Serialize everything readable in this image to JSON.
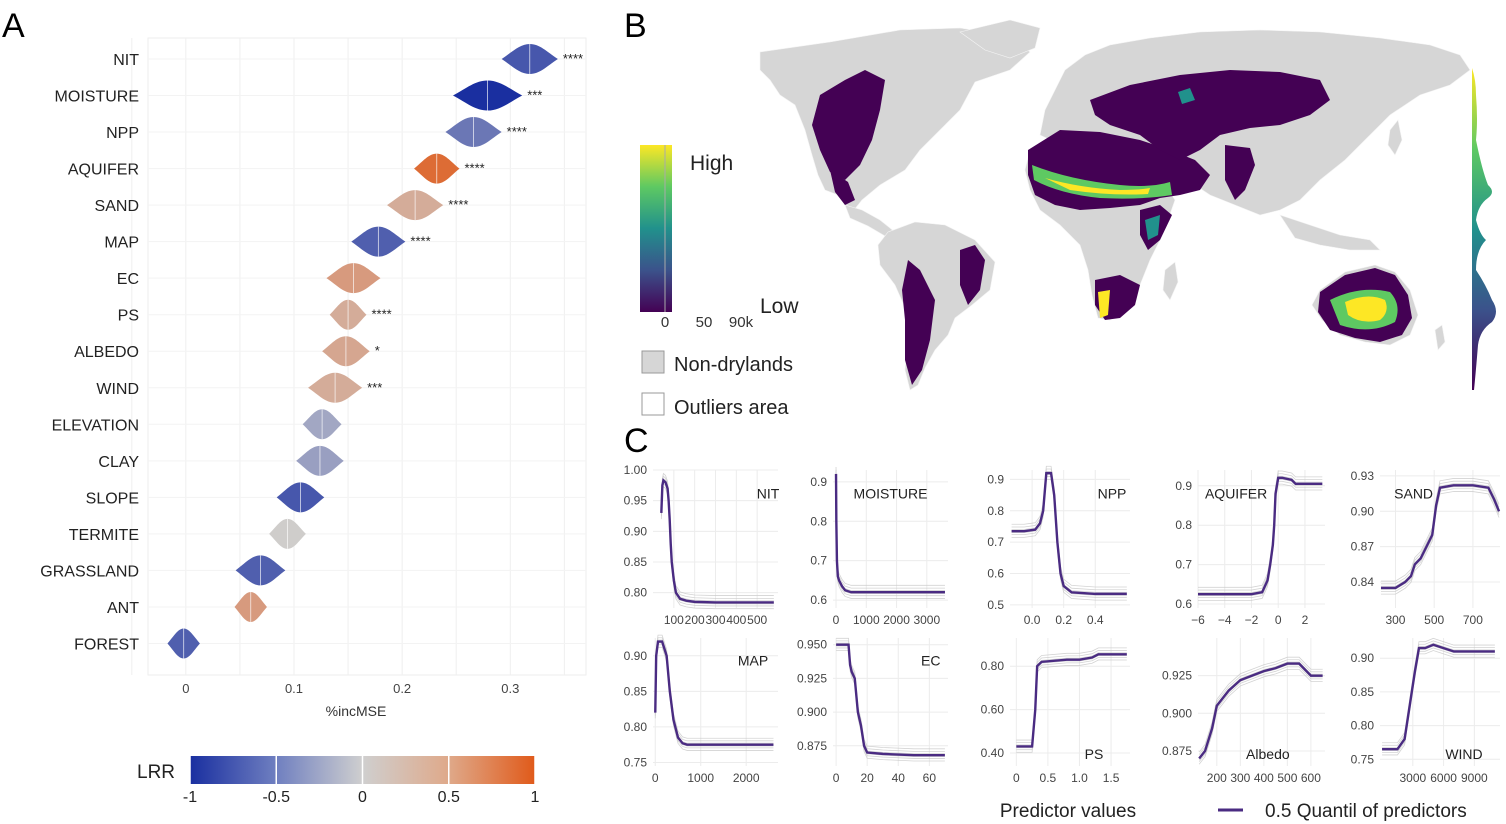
{
  "panel_labels": {
    "a": "A",
    "b": "B",
    "c": "C"
  },
  "colors": {
    "neg": "#1a2fa0",
    "mid": "#cfcfcf",
    "pos": "#e05a1a",
    "viridis_low": "#440154",
    "viridis_high": "#fde725",
    "line": "#4a2b82",
    "land": "#d6d6d6"
  },
  "panel_a": {
    "xlabel": "%incMSE",
    "xticks": [
      0,
      0.1,
      0.2,
      0.3
    ],
    "xtick_labels": [
      "0",
      "0.1",
      "0.2",
      "0.3"
    ],
    "xlim": [
      -0.035,
      0.37
    ],
    "legend": {
      "title": "LRR",
      "ticks": [
        "-1",
        "-0.5",
        "0",
        "0.5",
        "1"
      ],
      "values": [
        -1,
        -0.5,
        0,
        0.5,
        1
      ]
    }
  },
  "chart_data": [
    {
      "type": "violin",
      "xlabel": "%incMSE",
      "xlim": [
        -0.035,
        0.37
      ],
      "items": [
        {
          "name": "NIT",
          "center": 0.318,
          "spread": 0.026,
          "lrr": -0.75,
          "sig": "****"
        },
        {
          "name": "MOISTURE",
          "center": 0.279,
          "spread": 0.032,
          "lrr": -1.0,
          "sig": "***"
        },
        {
          "name": "NPP",
          "center": 0.266,
          "spread": 0.026,
          "lrr": -0.55,
          "sig": "****"
        },
        {
          "name": "AQUIFER",
          "center": 0.232,
          "spread": 0.021,
          "lrr": 0.85,
          "sig": "****"
        },
        {
          "name": "SAND",
          "center": 0.212,
          "spread": 0.026,
          "lrr": 0.3,
          "sig": "****"
        },
        {
          "name": "MAP",
          "center": 0.178,
          "spread": 0.025,
          "lrr": -0.7,
          "sig": "****"
        },
        {
          "name": "EC",
          "center": 0.155,
          "spread": 0.025,
          "lrr": 0.45,
          "sig": ""
        },
        {
          "name": "PS",
          "center": 0.15,
          "spread": 0.017,
          "lrr": 0.3,
          "sig": "****"
        },
        {
          "name": "ALBEDO",
          "center": 0.148,
          "spread": 0.022,
          "lrr": 0.35,
          "sig": "*"
        },
        {
          "name": "WIND",
          "center": 0.138,
          "spread": 0.025,
          "lrr": 0.3,
          "sig": "***"
        },
        {
          "name": "ELEVATION",
          "center": 0.126,
          "spread": 0.018,
          "lrr": -0.25,
          "sig": ""
        },
        {
          "name": "CLAY",
          "center": 0.124,
          "spread": 0.022,
          "lrr": -0.3,
          "sig": ""
        },
        {
          "name": "SLOPE",
          "center": 0.106,
          "spread": 0.022,
          "lrr": -0.75,
          "sig": ""
        },
        {
          "name": "TERMITE",
          "center": 0.094,
          "spread": 0.017,
          "lrr": 0.02,
          "sig": ""
        },
        {
          "name": "GRASSLAND",
          "center": 0.069,
          "spread": 0.023,
          "lrr": -0.7,
          "sig": ""
        },
        {
          "name": "ANT",
          "center": 0.06,
          "spread": 0.015,
          "lrr": 0.45,
          "sig": ""
        },
        {
          "name": "FOREST",
          "center": -0.002,
          "spread": 0.015,
          "lrr": -0.7,
          "sig": ""
        }
      ]
    },
    {
      "type": "map",
      "legend": {
        "high": "High",
        "low": "Low",
        "ticks": [
          "0",
          "50",
          "90k"
        ],
        "nondryland": "Non-drylands",
        "outliers": "Outliers area"
      }
    },
    {
      "type": "line",
      "xlabel": "Predictor values",
      "legend": "0.5 Quantil of predictors",
      "panels": [
        {
          "name": "NIT",
          "xlim": [
            0,
            600
          ],
          "ylim": [
            0.775,
            1.0
          ],
          "xticks": [
            100,
            200,
            300,
            400,
            500
          ],
          "yticks": [
            0.8,
            0.85,
            0.9,
            0.95,
            1.0
          ],
          "xtl": [
            "100",
            "200",
            "300",
            "400",
            "500"
          ],
          "ytl": [
            "0.80",
            "0.85",
            "0.90",
            "0.95",
            "1.00"
          ],
          "x": [
            40,
            45,
            50,
            60,
            70,
            75,
            80,
            85,
            90,
            100,
            110,
            130,
            160,
            200,
            300,
            400,
            500,
            580
          ],
          "y": [
            0.93,
            0.975,
            0.983,
            0.98,
            0.97,
            0.95,
            0.92,
            0.88,
            0.85,
            0.82,
            0.8,
            0.79,
            0.787,
            0.785,
            0.784,
            0.784,
            0.784,
            0.784
          ]
        },
        {
          "name": "MOISTURE",
          "xlim": [
            -100,
            3700
          ],
          "ylim": [
            0.58,
            0.93
          ],
          "xticks": [
            0,
            1000,
            2000,
            3000
          ],
          "yticks": [
            0.6,
            0.7,
            0.8,
            0.9
          ],
          "xtl": [
            "0",
            "1000",
            "2000",
            "3000"
          ],
          "ytl": [
            "0.6",
            "0.7",
            "0.8",
            "0.9"
          ],
          "x": [
            0,
            10,
            30,
            60,
            100,
            200,
            300,
            500,
            800,
            1500,
            2500,
            3600
          ],
          "y": [
            0.92,
            0.8,
            0.7,
            0.66,
            0.65,
            0.635,
            0.625,
            0.62,
            0.62,
            0.62,
            0.62,
            0.62
          ]
        },
        {
          "name": "NPP",
          "xlim": [
            -0.14,
            0.62
          ],
          "ylim": [
            0.49,
            0.93
          ],
          "xticks": [
            0.0,
            0.2,
            0.4
          ],
          "yticks": [
            0.5,
            0.6,
            0.7,
            0.8,
            0.9
          ],
          "xtl": [
            "0.0",
            "0.2",
            "0.4"
          ],
          "ytl": [
            "0.5",
            "0.6",
            "0.7",
            "0.8",
            "0.9"
          ],
          "x": [
            -0.13,
            -0.05,
            0.02,
            0.05,
            0.07,
            0.09,
            0.12,
            0.14,
            0.16,
            0.18,
            0.2,
            0.25,
            0.4,
            0.6
          ],
          "y": [
            0.735,
            0.735,
            0.74,
            0.76,
            0.8,
            0.92,
            0.92,
            0.85,
            0.7,
            0.6,
            0.56,
            0.54,
            0.535,
            0.535
          ]
        },
        {
          "name": "AQUIFER",
          "xlim": [
            -6,
            3.5
          ],
          "ylim": [
            0.59,
            0.94
          ],
          "xticks": [
            -6,
            -4,
            -2,
            0,
            2
          ],
          "yticks": [
            0.6,
            0.7,
            0.8,
            0.9
          ],
          "xtl": [
            "−6",
            "−4",
            "−2",
            "0",
            "2"
          ],
          "ytl": [
            "0.6",
            "0.7",
            "0.8",
            "0.9"
          ],
          "x": [
            -6,
            -4,
            -2,
            -1.2,
            -0.8,
            -0.6,
            -0.4,
            -0.3,
            -0.2,
            0,
            0.3,
            1,
            1.3,
            2,
            3.3
          ],
          "y": [
            0.625,
            0.625,
            0.625,
            0.63,
            0.66,
            0.7,
            0.75,
            0.8,
            0.88,
            0.92,
            0.92,
            0.915,
            0.905,
            0.905,
            0.905
          ]
        },
        {
          "name": "SAND",
          "xlim": [
            220,
            840
          ],
          "ylim": [
            0.818,
            0.935
          ],
          "xticks": [
            300,
            500,
            700
          ],
          "yticks": [
            0.84,
            0.87,
            0.9,
            0.93
          ],
          "xtl": [
            "300",
            "500",
            "700"
          ],
          "ytl": [
            "0.84",
            "0.87",
            "0.90",
            "0.93"
          ],
          "x": [
            225,
            300,
            350,
            380,
            400,
            430,
            460,
            490,
            510,
            530,
            600,
            700,
            780,
            810,
            835
          ],
          "y": [
            0.835,
            0.835,
            0.84,
            0.845,
            0.855,
            0.86,
            0.87,
            0.88,
            0.905,
            0.92,
            0.922,
            0.922,
            0.92,
            0.91,
            0.9
          ]
        },
        {
          "name": "MAP",
          "xlim": [
            -50,
            2700
          ],
          "ylim": [
            0.745,
            0.925
          ],
          "xticks": [
            0,
            1000,
            2000
          ],
          "yticks": [
            0.75,
            0.8,
            0.85,
            0.9
          ],
          "xtl": [
            "0",
            "1000",
            "2000"
          ],
          "ytl": [
            "0.75",
            "0.80",
            "0.85",
            "0.90"
          ],
          "x": [
            0,
            20,
            60,
            150,
            250,
            320,
            400,
            500,
            600,
            700,
            1000,
            2000,
            2600
          ],
          "y": [
            0.82,
            0.9,
            0.92,
            0.92,
            0.9,
            0.85,
            0.81,
            0.785,
            0.777,
            0.775,
            0.775,
            0.775,
            0.775
          ]
        },
        {
          "name": "EC",
          "xlim": [
            -2,
            72
          ],
          "ylim": [
            0.86,
            0.955
          ],
          "xticks": [
            0,
            20,
            40,
            60
          ],
          "yticks": [
            0.875,
            0.9,
            0.925,
            0.95
          ],
          "xtl": [
            "0",
            "20",
            "40",
            "60"
          ],
          "ytl": [
            "0.875",
            "0.900",
            "0.925",
            "0.950"
          ],
          "x": [
            0,
            8,
            9,
            10,
            12,
            14,
            16,
            18,
            20,
            30,
            50,
            70
          ],
          "y": [
            0.95,
            0.95,
            0.935,
            0.93,
            0.925,
            0.9,
            0.89,
            0.875,
            0.87,
            0.869,
            0.868,
            0.868
          ]
        },
        {
          "name": "PS",
          "xlim": [
            -0.1,
            1.8
          ],
          "ylim": [
            0.34,
            0.93
          ],
          "xticks": [
            0,
            0.5,
            1.0,
            1.5
          ],
          "yticks": [
            0.4,
            0.6,
            0.8
          ],
          "xtl": [
            "0",
            "0.5",
            "1.0",
            "1.5"
          ],
          "ytl": [
            "0.40",
            "0.60",
            "0.80"
          ],
          "x": [
            0,
            0.25,
            0.3,
            0.33,
            0.4,
            0.8,
            1.0,
            1.2,
            1.3,
            1.75
          ],
          "y": [
            0.43,
            0.43,
            0.6,
            0.8,
            0.82,
            0.83,
            0.83,
            0.84,
            0.855,
            0.855
          ]
        },
        {
          "name": "Albedo",
          "xlim": [
            120,
            660
          ],
          "ylim": [
            0.865,
            0.95
          ],
          "xticks": [
            200,
            300,
            400,
            500,
            600
          ],
          "yticks": [
            0.875,
            0.9,
            0.925
          ],
          "xtl": [
            "200",
            "300",
            "400",
            "500",
            "600"
          ],
          "ytl": [
            "0.875",
            "0.900",
            "0.925"
          ],
          "x": [
            125,
            150,
            180,
            200,
            250,
            300,
            350,
            400,
            450,
            500,
            550,
            600,
            650
          ],
          "y": [
            0.87,
            0.875,
            0.89,
            0.905,
            0.915,
            0.922,
            0.925,
            0.928,
            0.93,
            0.933,
            0.933,
            0.925,
            0.925
          ]
        },
        {
          "name": "WIND",
          "xlim": [
            -200,
            11500
          ],
          "ylim": [
            0.74,
            0.93
          ],
          "xticks": [
            3000,
            6000,
            9000
          ],
          "yticks": [
            0.75,
            0.8,
            0.85,
            0.9
          ],
          "xtl": [
            "3000",
            "6000",
            "9000"
          ],
          "ytl": [
            "0.75",
            "0.80",
            "0.85",
            "0.90"
          ],
          "x": [
            0,
            1500,
            2200,
            2800,
            3200,
            3600,
            4200,
            5000,
            6000,
            7000,
            11000
          ],
          "y": [
            0.765,
            0.765,
            0.78,
            0.84,
            0.88,
            0.915,
            0.915,
            0.92,
            0.915,
            0.91,
            0.91
          ]
        }
      ]
    }
  ]
}
